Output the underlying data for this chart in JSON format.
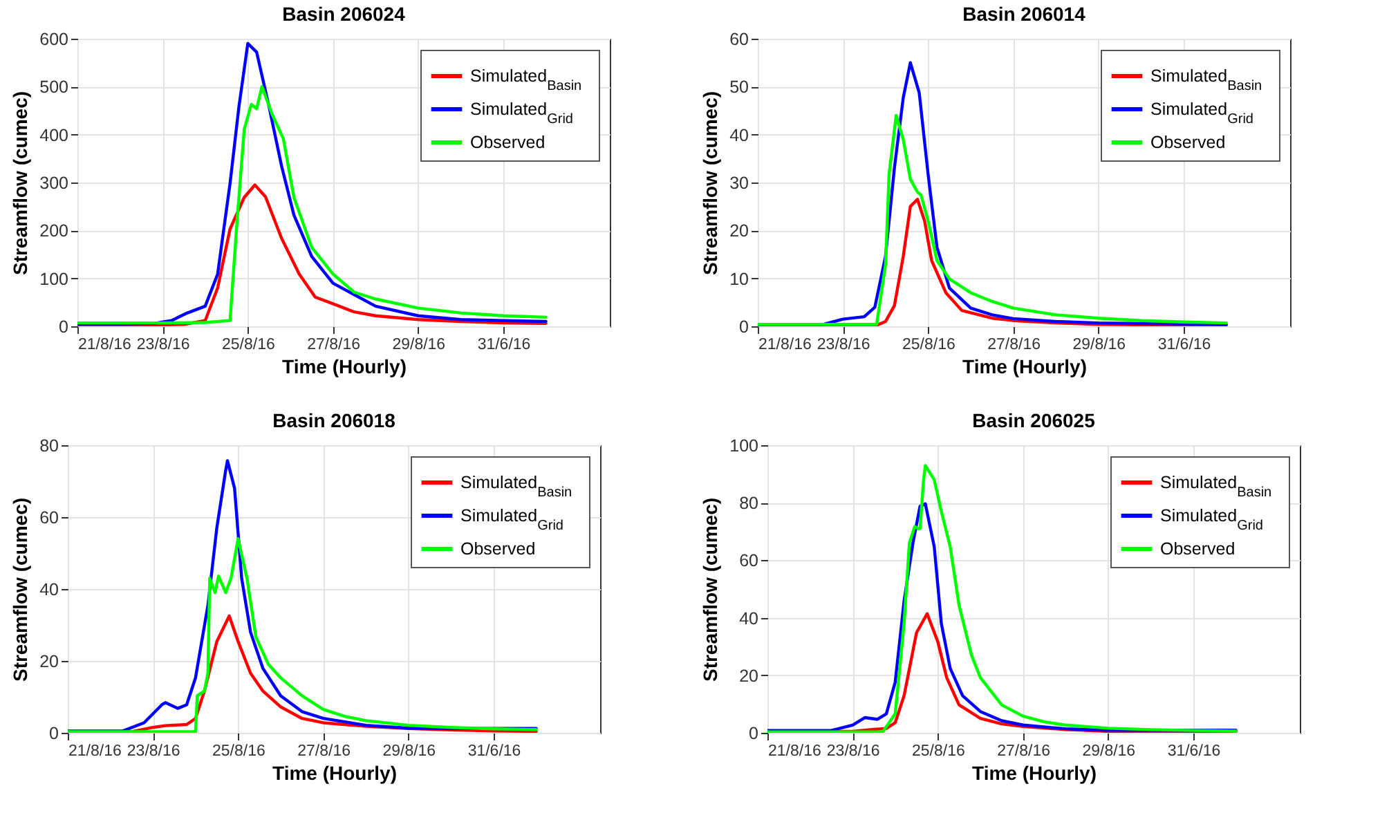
{
  "chart_data": [
    {
      "type": "line",
      "title": "Basin 206024",
      "xlabel": "Time (Hourly)",
      "ylabel": "Streamflow (cumec)",
      "xlim": [
        "--08-21",
        "--09-02T12:00"
      ],
      "xticks": [
        {
          "value": "--08-21",
          "label": "21/8/16"
        },
        {
          "value": "--08-23",
          "label": "23/8/16"
        },
        {
          "value": "--08-25",
          "label": "25/8/16"
        },
        {
          "value": "--08-27",
          "label": "27/8/16"
        },
        {
          "value": "--08-29",
          "label": "29/8/16"
        },
        {
          "value": "--08-31",
          "label": "31/6/16"
        }
      ],
      "ylim": [
        0,
        600
      ],
      "yticks": [
        0,
        100,
        200,
        300,
        400,
        500,
        600
      ],
      "grid": true,
      "legend": "top right",
      "series": [
        {
          "name": "Simulated$_{Basin}$",
          "color": "#ff0000",
          "x": [
            "--08-21",
            "--08-22",
            "--08-23",
            "--08-23T12:00",
            "--08-24",
            "--08-24T07:00",
            "--08-24T14:00",
            "--08-24T22:00",
            "--08-25T04:00",
            "--08-25T10:00",
            "--08-25T19:00",
            "--08-26T05:00",
            "--08-26T14:00",
            "--08-27",
            "--08-27T12:00",
            "--08-28",
            "--08-29",
            "--08-30",
            "--08-31",
            "--09-01"
          ],
          "values": [
            3,
            3,
            3,
            4,
            12,
            80,
            203,
            269,
            295,
            270,
            184,
            109,
            61,
            47,
            30,
            22,
            14,
            10,
            7,
            6
          ]
        },
        {
          "name": "Simulated$_{Grid}$",
          "color": "#0000ff",
          "x": [
            "--08-21",
            "--08-22",
            "--08-22T19:00",
            "--08-23T05:00",
            "--08-23T14:00",
            "--08-24",
            "--08-24T07:00",
            "--08-24T14:00",
            "--08-24T19:00",
            "--08-25",
            "--08-25T05:00",
            "--08-25T12:00",
            "--08-25T19:00",
            "--08-26T02:00",
            "--08-26T12:00",
            "--08-27",
            "--08-27T12:00",
            "--08-28",
            "--08-29",
            "--08-30",
            "--08-31",
            "--09-01"
          ],
          "values": [
            5,
            5,
            6,
            12,
            28,
            42,
            109,
            298,
            458,
            590,
            572,
            458,
            335,
            232,
            146,
            90,
            66,
            42,
            22,
            14,
            12,
            10
          ]
        },
        {
          "name": "Observed",
          "color": "#00ff00",
          "x": [
            "--08-21",
            "--08-22",
            "--08-23",
            "--08-24",
            "--08-24T14:00",
            "--08-24T18:00",
            "--08-24T22:00",
            "--08-25T02:00",
            "--08-25T05:00",
            "--08-25T08:00",
            "--08-25T14:00",
            "--08-25T20:00",
            "--08-26T02:00",
            "--08-26T12:00",
            "--08-27",
            "--08-27T12:00",
            "--08-28",
            "--08-29",
            "--08-30",
            "--08-31",
            "--09-01"
          ],
          "values": [
            7,
            7,
            7,
            8,
            12,
            222,
            411,
            463,
            454,
            500,
            440,
            392,
            269,
            165,
            109,
            71,
            57,
            38,
            28,
            22,
            19
          ]
        }
      ]
    },
    {
      "type": "line",
      "title": "Basin 206014",
      "xlabel": "Time (Hourly)",
      "ylabel": "Streamflow (cumec)",
      "xlim": [
        "--08-21",
        "--09-02T12:00"
      ],
      "xticks": [
        {
          "value": "--08-21",
          "label": "21/8/16"
        },
        {
          "value": "--08-23",
          "label": "23/8/16"
        },
        {
          "value": "--08-25",
          "label": "25/8/16"
        },
        {
          "value": "--08-27",
          "label": "27/8/16"
        },
        {
          "value": "--08-29",
          "label": "29/8/16"
        },
        {
          "value": "--08-31",
          "label": "31/6/16"
        }
      ],
      "ylim": [
        0,
        60
      ],
      "yticks": [
        0,
        10,
        20,
        30,
        40,
        50,
        60
      ],
      "grid": true,
      "legend": "top right",
      "series": [
        {
          "name": "Simulated$_{Basin}$",
          "color": "#ff0000",
          "x": [
            "--08-21",
            "--08-23",
            "--08-23T19:00",
            "--08-24",
            "--08-24T05:00",
            "--08-24T10:00",
            "--08-24T14:00",
            "--08-24T18:00",
            "--08-24T22:00",
            "--08-25T02:00",
            "--08-25T10:00",
            "--08-25T19:00",
            "--08-26T12:00",
            "--08-27",
            "--08-28",
            "--08-29",
            "--08-30",
            "--09-01"
          ],
          "values": [
            0.1,
            0.1,
            0.2,
            1,
            4.3,
            14.6,
            25,
            26.5,
            22,
            13.7,
            7,
            3.3,
            1.7,
            1.2,
            0.7,
            0.4,
            0.3,
            0.2
          ]
        },
        {
          "name": "Simulated$_{Grid}$",
          "color": "#0000ff",
          "x": [
            "--08-21",
            "--08-22T12:00",
            "--08-23",
            "--08-23T12:00",
            "--08-23T18:00",
            "--08-24",
            "--08-24T05:00",
            "--08-24T10:00",
            "--08-24T14:00",
            "--08-24T19:00",
            "--08-25",
            "--08-25T05:00",
            "--08-25T12:00",
            "--08-26",
            "--08-26T12:00",
            "--08-27",
            "--08-28",
            "--08-29",
            "--08-30",
            "--08-31",
            "--09-01"
          ],
          "values": [
            0.3,
            0.3,
            1.5,
            2,
            4,
            14.6,
            33,
            47.7,
            55,
            48.7,
            31.7,
            16.5,
            8,
            3.8,
            2.4,
            1.6,
            1,
            0.7,
            0.6,
            0.5,
            0.4
          ]
        },
        {
          "name": "Observed",
          "color": "#00ff00",
          "x": [
            "--08-21",
            "--08-23",
            "--08-23T19:00",
            "--08-24",
            "--08-24T02:00",
            "--08-24T06:00",
            "--08-24T10:00",
            "--08-24T14:00",
            "--08-24T18:00",
            "--08-24T20:00",
            "--08-25",
            "--08-25T05:00",
            "--08-25T12:00",
            "--08-26",
            "--08-26T12:00",
            "--08-27",
            "--08-28",
            "--08-29",
            "--08-30",
            "--08-31",
            "--09-01"
          ],
          "values": [
            0.4,
            0.4,
            0.4,
            12.8,
            31.7,
            44,
            39,
            30.7,
            28,
            27.4,
            22,
            13.7,
            9.9,
            7,
            5.2,
            3.8,
            2.4,
            1.7,
            1.2,
            0.9,
            0.7
          ]
        }
      ]
    },
    {
      "type": "line",
      "title": "Basin 206018",
      "xlabel": "Time (Hourly)",
      "ylabel": "Streamflow (cumec)",
      "xlim": [
        "--08-21",
        "--09-02T12:00"
      ],
      "xticks": [
        {
          "value": "--08-21",
          "label": "21/8/16"
        },
        {
          "value": "--08-23",
          "label": "23/8/16"
        },
        {
          "value": "--08-25",
          "label": "25/8/16"
        },
        {
          "value": "--08-27",
          "label": "27/8/16"
        },
        {
          "value": "--08-29",
          "label": "29/8/16"
        },
        {
          "value": "--08-31",
          "label": "31/6/16"
        }
      ],
      "ylim": [
        0,
        80
      ],
      "yticks": [
        0,
        20,
        40,
        60,
        80
      ],
      "grid": true,
      "legend": "top right",
      "series": [
        {
          "name": "Simulated$_{Basin}$",
          "color": "#ff0000",
          "x": [
            "--08-21",
            "--08-22T12:00",
            "--08-23",
            "--08-23T07:00",
            "--08-23T19:00",
            "--08-24",
            "--08-24T05:00",
            "--08-24T12:00",
            "--08-24T19:00",
            "--08-25",
            "--08-25T07:00",
            "--08-25T14:00",
            "--08-26",
            "--08-26T12:00",
            "--08-27",
            "--08-28",
            "--08-29",
            "--08-30",
            "--08-31",
            "--09-01"
          ],
          "values": [
            0.3,
            0.3,
            1.5,
            2,
            2.3,
            4,
            11.6,
            25.4,
            32.5,
            25.4,
            16.6,
            11.6,
            7.2,
            4,
            2.8,
            1.8,
            1.2,
            0.8,
            0.5,
            0.4
          ]
        },
        {
          "name": "Simulated$_{Grid}$",
          "color": "#0000ff",
          "x": [
            "--08-21",
            "--08-22T07:00",
            "--08-22T19:00",
            "--08-23T05:00",
            "--08-23T07:00",
            "--08-23T14:00",
            "--08-23T19:00",
            "--08-24",
            "--08-24T07:00",
            "--08-24T12:00",
            "--08-24T17:00",
            "--08-24T18:00",
            "--08-24T22:00",
            "--08-25T02:00",
            "--08-25T07:00",
            "--08-25T14:00",
            "--08-26",
            "--08-26T12:00",
            "--08-27",
            "--08-28",
            "--08-29",
            "--08-30",
            "--08-31",
            "--09-01"
          ],
          "values": [
            0.5,
            0.5,
            2.8,
            7.8,
            8.4,
            6.8,
            7.8,
            15.3,
            35.5,
            57,
            73,
            75.7,
            68,
            43,
            28,
            17.9,
            10.3,
            5.9,
            4,
            2.1,
            1.3,
            1.2,
            1.2,
            1.2
          ]
        },
        {
          "name": "Observed",
          "color": "#00ff00",
          "x": [
            "--08-21",
            "--08-24",
            "--08-24T01:00",
            "--08-24T05:00",
            "--08-24T07:00",
            "--08-24T08:00",
            "--08-24T11:00",
            "--08-24T13:00",
            "--08-24T17:00",
            "--08-24T20:00",
            "--08-25",
            "--08-25T05:00",
            "--08-25T10:00",
            "--08-25T17:00",
            "--08-26",
            "--08-26T12:00",
            "--08-27",
            "--08-27T12:00",
            "--08-28",
            "--08-29",
            "--08-30",
            "--08-31",
            "--09-01"
          ],
          "values": [
            0.3,
            0.3,
            10.3,
            11.6,
            16.6,
            43,
            39,
            43.6,
            39,
            43,
            54,
            43,
            26.7,
            19.1,
            15.3,
            10.3,
            6.5,
            4.6,
            3.4,
            2.1,
            1.5,
            1.1,
            0.9
          ]
        }
      ]
    },
    {
      "type": "line",
      "title": "Basin 206025",
      "xlabel": "Time (Hourly)",
      "ylabel": "Streamflow (cumec)",
      "xlim": [
        "--08-21",
        "--09-02T12:00"
      ],
      "xticks": [
        {
          "value": "--08-21",
          "label": "21/8/16"
        },
        {
          "value": "--08-23",
          "label": "23/8/16"
        },
        {
          "value": "--08-25",
          "label": "25/8/16"
        },
        {
          "value": "--08-27",
          "label": "27/8/16"
        },
        {
          "value": "--08-29",
          "label": "29/8/16"
        },
        {
          "value": "--08-31",
          "label": "31/6/16"
        }
      ],
      "ylim": [
        0,
        100
      ],
      "yticks": [
        0,
        20,
        40,
        60,
        80,
        100
      ],
      "grid": true,
      "legend": "top right",
      "series": [
        {
          "name": "Simulated$_{Basin}$",
          "color": "#ff0000",
          "x": [
            "--08-21",
            "--08-23",
            "--08-23T12:00",
            "--08-23T19:00",
            "--08-24",
            "--08-24T05:00",
            "--08-24T12:00",
            "--08-24T18:00",
            "--08-25",
            "--08-25T05:00",
            "--08-25T12:00",
            "--08-26",
            "--08-26T12:00",
            "--08-27",
            "--08-28",
            "--08-29",
            "--09-01"
          ],
          "values": [
            0.5,
            0.5,
            1.2,
            1.5,
            3.5,
            12.9,
            34.8,
            41.4,
            31.7,
            19.2,
            9.7,
            5,
            3.1,
            2.2,
            1.1,
            0.5,
            0.5
          ]
        },
        {
          "name": "Simulated$_{Grid}$",
          "color": "#0000ff",
          "x": [
            "--08-21",
            "--08-22T12:00",
            "--08-23",
            "--08-23T07:00",
            "--08-23T14:00",
            "--08-23T19:00",
            "--08-24",
            "--08-24T05:00",
            "--08-24T10:00",
            "--08-24T14:00",
            "--08-24T17:00",
            "--08-24T22:00",
            "--08-25T02:00",
            "--08-25T07:00",
            "--08-25T14:00",
            "--08-26",
            "--08-26T12:00",
            "--08-27",
            "--08-28",
            "--08-29",
            "--09-01"
          ],
          "values": [
            0.8,
            0.8,
            2.7,
            5.3,
            4.7,
            6.6,
            17.6,
            45.8,
            66,
            78.8,
            79.6,
            64.7,
            38,
            22.4,
            12.9,
            7.4,
            4.2,
            2.7,
            1.4,
            0.9,
            0.9
          ]
        },
        {
          "name": "Observed",
          "color": "#00ff00",
          "x": [
            "--08-21",
            "--08-23T17:00",
            "--08-24",
            "--08-24T05:00",
            "--08-24T08:00",
            "--08-24T11:00",
            "--08-24T13:00",
            "--08-24T14:00",
            "--08-24T16:00",
            "--08-24T17:00",
            "--08-24T22:00",
            "--08-25T02:00",
            "--08-25T07:00",
            "--08-25T12:00",
            "--08-25T19:00",
            "--08-26",
            "--08-26T12:00",
            "--08-27",
            "--08-27T12:00",
            "--08-28",
            "--08-29",
            "--08-30",
            "--08-31",
            "--09-01"
          ],
          "values": [
            0.3,
            0.3,
            6.6,
            38,
            66,
            71.7,
            71,
            71,
            88,
            92.9,
            88,
            77,
            64.7,
            44.3,
            27,
            19.2,
            9.7,
            5.8,
            3.8,
            2.7,
            1.6,
            1.1,
            0.8,
            0.6
          ]
        }
      ]
    }
  ]
}
